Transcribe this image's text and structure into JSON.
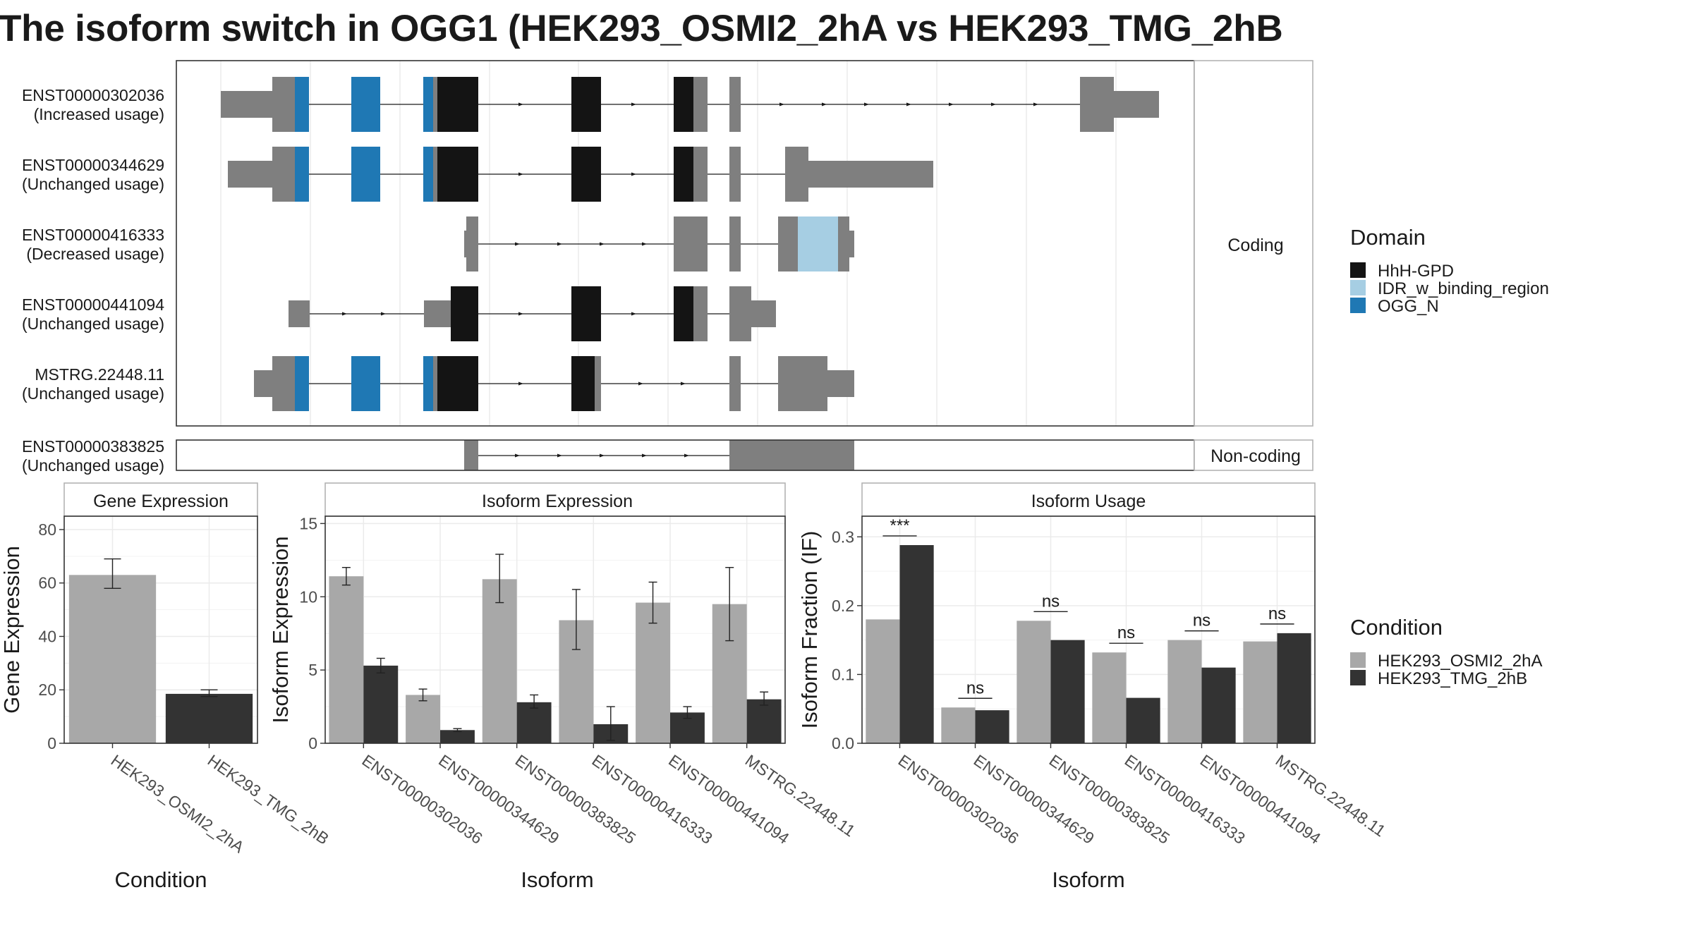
{
  "title": "The isoform switch in OGG1 (HEK293_OSMI2_2hA vs HEK293_TMG_2hB",
  "colors": {
    "utr": "#7f7f7f",
    "hhh_gpd": "#141414",
    "idr": "#a6cee3",
    "ogg_n": "#1f78b4",
    "cond_a": "#a8a8a8",
    "cond_b": "#333333",
    "grid": "#ebebeb",
    "panel_border": "#333333",
    "strip_border": "#333333"
  },
  "structure": {
    "coding_label": "Coding",
    "noncoding_label": "Non-coding",
    "transcripts": [
      {
        "id": "ENST00000302036",
        "status": "(Increased usage)",
        "group": "coding"
      },
      {
        "id": "ENST00000344629",
        "status": "(Unchanged usage)",
        "group": "coding"
      },
      {
        "id": "ENST00000416333",
        "status": "(Decreased usage)",
        "group": "coding"
      },
      {
        "id": "ENST00000441094",
        "status": "(Unchanged usage)",
        "group": "coding"
      },
      {
        "id": "MSTRG.22448.11",
        "status": "(Unchanged usage)",
        "group": "coding"
      },
      {
        "id": "ENST00000383825",
        "status": "(Unchanged usage)",
        "group": "noncoding"
      }
    ]
  },
  "domain_legend": {
    "title": "Domain",
    "items": [
      {
        "label": "HhH-GPD",
        "color": "#141414"
      },
      {
        "label": "IDR_w_binding_region",
        "color": "#a6cee3"
      },
      {
        "label": "OGG_N",
        "color": "#1f78b4"
      }
    ]
  },
  "condition_legend": {
    "title": "Condition",
    "items": [
      {
        "label": "HEK293_OSMI2_2hA",
        "color": "#a8a8a8"
      },
      {
        "label": "HEK293_TMG_2hB",
        "color": "#333333"
      }
    ]
  },
  "chart_data": [
    {
      "type": "bar",
      "title": "Gene Expression",
      "xlabel": "Condition",
      "ylabel": "Gene Expression",
      "ylim": [
        0,
        85
      ],
      "yticks": [
        0,
        20,
        40,
        60,
        80
      ],
      "categories": [
        "HEK293_OSMI2_2hA",
        "HEK293_TMG_2hB"
      ],
      "values": [
        63,
        18.5
      ],
      "errors": [
        [
          58,
          69
        ],
        [
          17.5,
          20
        ]
      ],
      "grid": true
    },
    {
      "type": "bar",
      "title": "Isoform Expression",
      "xlabel": "Isoform",
      "ylabel": "Isoform Expression",
      "ylim": [
        0,
        15.5
      ],
      "yticks": [
        0,
        5,
        10,
        15
      ],
      "categories": [
        "ENST00000302036",
        "ENST00000344629",
        "ENST00000383825",
        "ENST00000416333",
        "ENST00000441094",
        "MSTRG.22448.11"
      ],
      "series": [
        {
          "name": "HEK293_OSMI2_2hA",
          "values": [
            11.4,
            3.3,
            11.2,
            8.4,
            9.6,
            9.5
          ],
          "errors": [
            [
              10.8,
              12.0
            ],
            [
              2.9,
              3.7
            ],
            [
              9.6,
              12.9
            ],
            [
              6.4,
              10.5
            ],
            [
              8.2,
              11.0
            ],
            [
              7.0,
              12.0
            ]
          ]
        },
        {
          "name": "HEK293_TMG_2hB",
          "values": [
            5.3,
            0.9,
            2.8,
            1.3,
            2.1,
            3.0
          ],
          "errors": [
            [
              4.8,
              5.8
            ],
            [
              0.8,
              1.0
            ],
            [
              2.4,
              3.3
            ],
            [
              0.2,
              2.5
            ],
            [
              1.7,
              2.5
            ],
            [
              2.6,
              3.5
            ]
          ]
        }
      ],
      "grid": true
    },
    {
      "type": "bar",
      "title": "Isoform Usage",
      "xlabel": "Isoform",
      "ylabel": "Isoform Fraction (IF)",
      "ylim": [
        0,
        0.33
      ],
      "yticks": [
        0.0,
        0.1,
        0.2,
        0.3
      ],
      "ytick_labels": [
        "0.0",
        "0.1",
        "0.2",
        "0.3"
      ],
      "categories": [
        "ENST00000302036",
        "ENST00000344629",
        "ENST00000383825",
        "ENST00000416333",
        "ENST00000441094",
        "MSTRG.22448.11"
      ],
      "series": [
        {
          "name": "HEK293_OSMI2_2hA",
          "values": [
            0.18,
            0.052,
            0.178,
            0.132,
            0.15,
            0.148
          ]
        },
        {
          "name": "HEK293_TMG_2hB",
          "values": [
            0.288,
            0.048,
            0.15,
            0.066,
            0.11,
            0.16
          ]
        }
      ],
      "significance": [
        "***",
        "ns",
        "ns",
        "ns",
        "ns",
        "ns"
      ],
      "grid": true
    }
  ]
}
